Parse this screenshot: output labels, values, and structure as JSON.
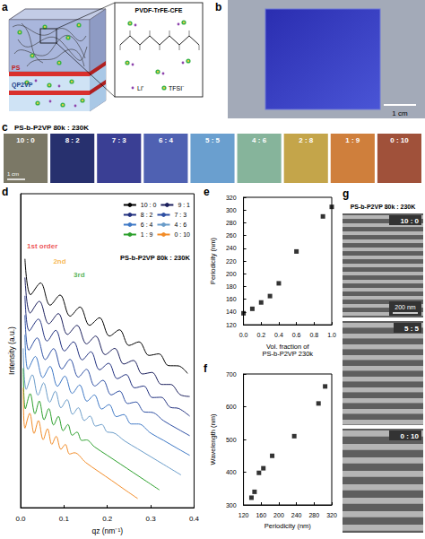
{
  "panels": {
    "a": {
      "label": "a",
      "layers": [
        "PS",
        "QP2VP"
      ],
      "inset_title": "PVDF-TrFE-CFE",
      "ions": [
        "Li⁺",
        "TFSI⁻"
      ]
    },
    "b": {
      "label": "b",
      "scale_bar": "1 cm"
    },
    "c": {
      "label": "c",
      "title": "PS-b-P2VP 80k : 230K",
      "scale_bar": "1 cm",
      "samples": [
        {
          "name": "10 : 0",
          "color": "#7b7866"
        },
        {
          "name": "8 : 2",
          "color": "#27306e"
        },
        {
          "name": "7 : 3",
          "color": "#3a3f94"
        },
        {
          "name": "6 : 4",
          "color": "#4f61b2"
        },
        {
          "name": "5 : 5",
          "color": "#6a9fcf"
        },
        {
          "name": "4 : 6",
          "color": "#86b49b"
        },
        {
          "name": "2 : 8",
          "color": "#c4a54a"
        },
        {
          "name": "1 : 9",
          "color": "#cf7f3c"
        },
        {
          "name": "0 : 10",
          "color": "#a0513a"
        }
      ]
    },
    "g": {
      "label": "g",
      "title": "PS-b-P2VP 80k : 230K",
      "images": [
        "10 : 0",
        "5 : 5",
        "0 : 10"
      ],
      "scale_bar": "200 nm"
    }
  },
  "chart_data": [
    {
      "label": "d",
      "type": "line",
      "title": "PS-b-P2VP 80k : 230K",
      "x_label": "qz (nm⁻¹)",
      "y_label": "Intensity (a.u.)",
      "xlim": [
        0,
        0.4
      ],
      "xticks": [
        {
          "value": 0,
          "label": "0.0"
        },
        0.1,
        0.2,
        0.3,
        0.4
      ],
      "ylim": [
        0,
        12
      ],
      "tick_labels": "x",
      "legend": "top-right",
      "annotations": [
        {
          "text": "1st order",
          "x": 0.05,
          "y": 10.0,
          "color": "#e8262a"
        },
        {
          "text": "2nd",
          "x": 0.09,
          "y": 9.4,
          "color": "#f5a623"
        },
        {
          "text": "3rd",
          "x": 0.135,
          "y": 8.9,
          "color": "#2ca02c"
        }
      ],
      "series": [
        {
          "name": "10 : 0",
          "color": "#000000",
          "x": [
            0.01,
            0.023,
            0.046,
            0.068,
            0.091,
            0.114,
            0.137,
            0.159,
            0.182,
            0.205,
            0.228,
            0.25,
            0.273,
            0.296,
            0.319,
            0.341,
            0.364,
            0.385
          ],
          "values": [
            9.51,
            8.14,
            8.59,
            7.74,
            8.13,
            7.32,
            7.67,
            6.97,
            7.26,
            6.56,
            6.8,
            6.2,
            6.34,
            5.82,
            5.88,
            5.43,
            5.42,
            5.13
          ]
        },
        {
          "name": "9 : 1",
          "color": "#1b1f5c",
          "x": [
            0.01,
            0.022,
            0.043,
            0.065,
            0.087,
            0.108,
            0.13,
            0.152,
            0.173,
            0.195,
            0.217,
            0.238,
            0.26,
            0.281,
            0.303,
            0.325,
            0.346,
            0.368,
            0.39
          ],
          "values": [
            8.8,
            7.44,
            7.89,
            7.03,
            7.42,
            6.62,
            6.97,
            6.26,
            6.56,
            5.85,
            6.09,
            5.49,
            5.63,
            5.11,
            5.17,
            4.71,
            4.71,
            4.32,
            4.25
          ]
        },
        {
          "name": "8 : 2",
          "color": "#22317f",
          "x": [
            0.01,
            0.02,
            0.041,
            0.061,
            0.081,
            0.101,
            0.122,
            0.142,
            0.162,
            0.182,
            0.203,
            0.223,
            0.243,
            0.263,
            0.284,
            0.304,
            0.324,
            0.345,
            0.365,
            0.39
          ],
          "values": [
            8.1,
            6.76,
            7.21,
            6.37,
            6.78,
            5.99,
            6.34,
            5.65,
            5.96,
            5.27,
            5.52,
            4.93,
            5.09,
            4.58,
            4.65,
            4.21,
            4.22,
            3.84,
            3.79,
            3.5
          ]
        },
        {
          "name": "7 : 3",
          "color": "#2e4fa3",
          "x": [
            0.01,
            0.019,
            0.038,
            0.057,
            0.076,
            0.095,
            0.114,
            0.133,
            0.152,
            0.171,
            0.19,
            0.209,
            0.228,
            0.247,
            0.266,
            0.285,
            0.304,
            0.33,
            0.36,
            0.39
          ],
          "values": [
            7.36,
            6.02,
            6.49,
            5.66,
            6.08,
            5.3,
            5.67,
            4.99,
            5.29,
            4.65,
            4.87,
            4.31,
            4.46,
            3.98,
            4.04,
            3.66,
            3.64,
            3.32,
            3.03,
            2.75
          ]
        },
        {
          "name": "6 : 4",
          "color": "#3f79c6",
          "x": [
            0.01,
            0.017,
            0.034,
            0.051,
            0.068,
            0.085,
            0.102,
            0.119,
            0.136,
            0.153,
            0.17,
            0.187,
            0.204,
            0.221,
            0.238,
            0.255,
            0.272,
            0.3,
            0.33,
            0.36,
            0.39
          ],
          "values": [
            6.61,
            5.29,
            5.78,
            4.97,
            5.4,
            4.64,
            5.03,
            4.37,
            4.69,
            4.07,
            4.31,
            3.77,
            3.94,
            3.48,
            3.56,
            3.2,
            3.2,
            2.85,
            2.57,
            2.28,
            2.0
          ]
        },
        {
          "name": "4 : 6",
          "color": "#6a9cc9",
          "x": [
            0.006,
            0.013,
            0.027,
            0.04,
            0.053,
            0.067,
            0.08,
            0.093,
            0.107,
            0.12,
            0.133,
            0.147,
            0.16,
            0.173,
            0.187,
            0.2,
            0.213,
            0.24,
            0.27,
            0.3,
            0.33,
            0.37
          ],
          "values": [
            6.09,
            4.52,
            5.08,
            4.3,
            4.77,
            4.03,
            4.45,
            3.82,
            4.13,
            3.57,
            3.82,
            3.33,
            3.5,
            3.12,
            3.18,
            2.89,
            2.87,
            2.55,
            2.25,
            1.95,
            1.65,
            1.25
          ]
        },
        {
          "name": "1 : 9",
          "color": "#2ca02c",
          "x": [
            0.006,
            0.011,
            0.022,
            0.033,
            0.043,
            0.054,
            0.065,
            0.076,
            0.087,
            0.098,
            0.109,
            0.119,
            0.13,
            0.141,
            0.152,
            0.17,
            0.2,
            0.23,
            0.26,
            0.29,
            0.32
          ],
          "values": [
            5.33,
            3.78,
            4.36,
            3.59,
            4.08,
            3.36,
            3.79,
            3.16,
            3.49,
            2.94,
            3.18,
            2.77,
            2.89,
            2.57,
            2.59,
            2.33,
            2.0,
            1.67,
            1.34,
            1.01,
            0.68
          ]
        },
        {
          "name": "0 : 10",
          "color": "#f28c28",
          "x": [
            0.006,
            0.01,
            0.021,
            0.031,
            0.041,
            0.052,
            0.062,
            0.072,
            0.082,
            0.093,
            0.103,
            0.113,
            0.124,
            0.15,
            0.18,
            0.21,
            0.24,
            0.27
          ],
          "values": [
            4.58,
            3.04,
            3.61,
            2.84,
            3.33,
            2.6,
            3.02,
            2.42,
            2.73,
            2.23,
            2.42,
            2.05,
            2.1,
            1.73,
            1.38,
            1.04,
            0.69,
            0.35
          ]
        }
      ]
    },
    {
      "label": "e",
      "type": "scatter",
      "x_label": "Vol. fraction of PS-b-P2VP 230k",
      "y_label": "Periodicity (nm)",
      "x": [
        0,
        0.1,
        0.2,
        0.3,
        0.4,
        0.6,
        0.9,
        1
      ],
      "values": [
        138,
        145,
        155,
        165,
        185,
        235,
        290,
        305
      ],
      "color": "#000000",
      "marker": "square",
      "xlim": [
        0,
        1
      ],
      "xticks": [
        {
          "value": 0,
          "label": "0.0"
        },
        0.2,
        0.4,
        0.6,
        0.8,
        {
          "value": 1,
          "label": "1.0"
        }
      ],
      "ylim": [
        120,
        320
      ],
      "yticks": [
        120,
        140,
        160,
        180,
        200,
        220,
        240,
        260,
        280,
        300,
        320
      ]
    },
    {
      "label": "f",
      "type": "scatter",
      "x_label": "Periodicity (nm)",
      "y_label": "Wavelength (nm)",
      "x": [
        138,
        145,
        155,
        165,
        185,
        235,
        290,
        305
      ],
      "values": [
        322,
        340,
        398,
        412,
        450,
        510,
        610,
        662
      ],
      "color": "#000000",
      "marker": "square",
      "xlim": [
        120,
        320
      ],
      "xticks": [
        120,
        160,
        200,
        240,
        280,
        320
      ],
      "ylim": [
        300,
        700
      ],
      "yticks": [
        300,
        400,
        500,
        600,
        700
      ]
    }
  ]
}
